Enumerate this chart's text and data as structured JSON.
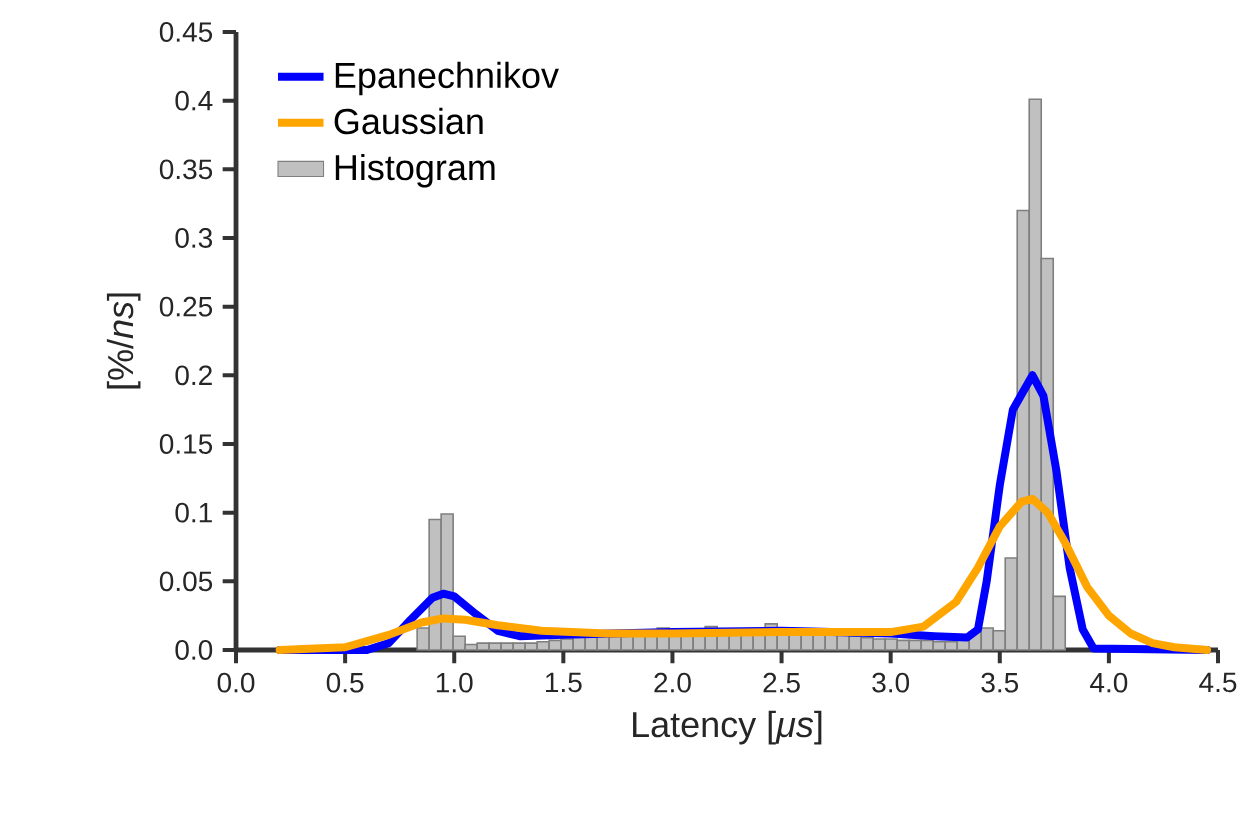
{
  "chart_data": {
    "type": "histogram",
    "xlabel": "Latency [*μs*]",
    "ylabel": "[%/*ns*]",
    "xlim": [
      0,
      4.5
    ],
    "ylim": [
      0,
      0.45
    ],
    "xticks": [
      {
        "value": 0,
        "label": "0.0"
      },
      {
        "value": 0.5,
        "label": "0.5"
      },
      {
        "value": 1,
        "label": "1.0"
      },
      {
        "value": 1.5,
        "label": "1.5"
      },
      {
        "value": 2,
        "label": "2.0"
      },
      {
        "value": 2.5,
        "label": "2.5"
      },
      {
        "value": 3,
        "label": "3.0"
      },
      {
        "value": 3.5,
        "label": "3.5"
      },
      {
        "value": 4,
        "label": "4.0"
      },
      {
        "value": 4.5,
        "label": "4.5"
      }
    ],
    "yticks": [
      {
        "value": 0,
        "label": "0.0"
      },
      0.05,
      {
        "value": 0.1,
        "label": "0.1"
      },
      0.15,
      {
        "value": 0.2,
        "label": "0.2"
      },
      0.25,
      {
        "value": 0.3,
        "label": "0.3"
      },
      0.35,
      {
        "value": 0.4,
        "label": "0.4"
      },
      0.45
    ],
    "legend": "top left",
    "series": [
      {
        "name": "Epanechnikov",
        "type": "line",
        "color": "#0000ff",
        "x": [
          0.2,
          0.6,
          0.7,
          0.8,
          0.9,
          0.95,
          1.0,
          1.1,
          1.2,
          1.3,
          1.5,
          2.0,
          2.5,
          3.0,
          3.2,
          3.35,
          3.4,
          3.44,
          3.5,
          3.56,
          3.65,
          3.7,
          3.76,
          3.82,
          3.88,
          3.93,
          4.45
        ],
        "values": [
          0,
          0,
          0.005,
          0.022,
          0.038,
          0.041,
          0.039,
          0.026,
          0.014,
          0.01,
          0.011,
          0.013,
          0.014,
          0.012,
          0.01,
          0.009,
          0.015,
          0.05,
          0.12,
          0.175,
          0.2,
          0.185,
          0.13,
          0.06,
          0.015,
          0.001,
          0
        ]
      },
      {
        "name": "Gaussian",
        "type": "line",
        "color": "#ffa500",
        "x": [
          0.2,
          0.5,
          0.7,
          0.85,
          0.95,
          1.05,
          1.2,
          1.4,
          1.7,
          2.0,
          2.5,
          3.0,
          3.15,
          3.3,
          3.4,
          3.5,
          3.6,
          3.65,
          3.72,
          3.8,
          3.9,
          4.0,
          4.1,
          4.2,
          4.3,
          4.45
        ],
        "values": [
          0,
          0.002,
          0.011,
          0.02,
          0.023,
          0.022,
          0.018,
          0.014,
          0.012,
          0.012,
          0.013,
          0.013,
          0.017,
          0.035,
          0.06,
          0.09,
          0.108,
          0.11,
          0.1,
          0.078,
          0.046,
          0.025,
          0.012,
          0.005,
          0.002,
          0
        ]
      },
      {
        "name": "Histogram",
        "type": "histogram",
        "color": "#c0c0c0",
        "bins": [
          0.83,
          0.885,
          0.94,
          0.995,
          1.05,
          1.105,
          1.16,
          1.215,
          1.27,
          1.325,
          1.38,
          1.435,
          1.49,
          1.545,
          1.6,
          1.655,
          1.71,
          1.765,
          1.82,
          1.875,
          1.93,
          1.985,
          2.04,
          2.095,
          2.15,
          2.205,
          2.26,
          2.315,
          2.37,
          2.425,
          2.48,
          2.535,
          2.59,
          2.645,
          2.7,
          2.755,
          2.81,
          2.865,
          2.92,
          2.975,
          3.03,
          3.085,
          3.14,
          3.195,
          3.25,
          3.305,
          3.36,
          3.415,
          3.47,
          3.525,
          3.58,
          3.635,
          3.69,
          3.745,
          3.8
        ],
        "values": [
          0.016,
          0.095,
          0.099,
          0.01,
          0.004,
          0.005,
          0.005,
          0.005,
          0.005,
          0.005,
          0.006,
          0.007,
          0.008,
          0.01,
          0.011,
          0.012,
          0.012,
          0.012,
          0.013,
          0.013,
          0.016,
          0.013,
          0.013,
          0.013,
          0.017,
          0.013,
          0.013,
          0.013,
          0.013,
          0.019,
          0.014,
          0.013,
          0.013,
          0.012,
          0.012,
          0.011,
          0.01,
          0.009,
          0.008,
          0.008,
          0.007,
          0.007,
          0.007,
          0.006,
          0.006,
          0.008,
          0.013,
          0.016,
          0.014,
          0.067,
          0.32,
          0.401,
          0.285,
          0.039
        ]
      }
    ]
  }
}
